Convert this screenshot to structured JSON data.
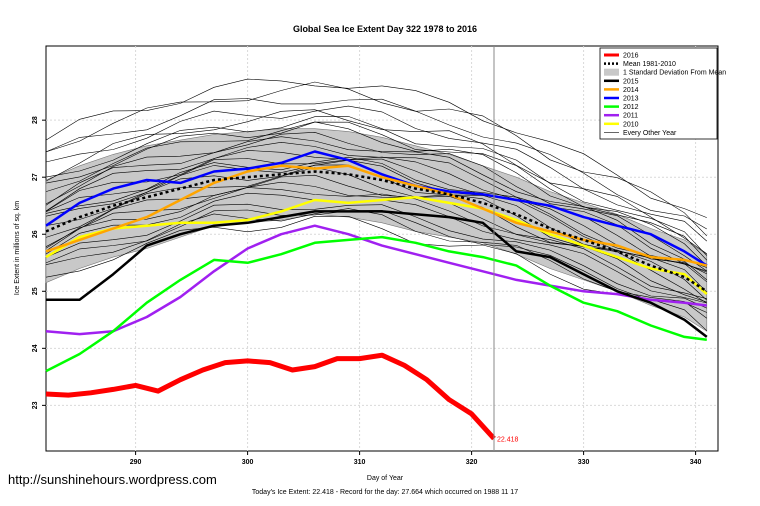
{
  "chart_data": {
    "type": "line",
    "title": "Global Sea Ice Extent Day 322 1978 to 2016",
    "xlabel": "Day of Year",
    "ylabel": "Ice Extent in millions of sq. km",
    "xlim": [
      282,
      342
    ],
    "ylim": [
      22.2,
      29.3
    ],
    "xticks": [
      290,
      300,
      310,
      320,
      330,
      340
    ],
    "yticks": [
      23,
      24,
      25,
      26,
      27,
      28
    ],
    "current_day": 322,
    "end_label": "22.418",
    "x_2016": [
      282,
      284,
      286,
      288,
      290,
      292,
      294,
      296,
      298,
      300,
      302,
      304,
      306,
      308,
      310,
      312,
      314,
      316,
      318,
      320,
      322
    ],
    "x_full": [
      282,
      285,
      288,
      291,
      294,
      297,
      300,
      303,
      306,
      309,
      312,
      315,
      318,
      321,
      324,
      327,
      330,
      333,
      336,
      339,
      341
    ],
    "series": [
      {
        "name": "2016",
        "color": "#ff0000",
        "width": 5,
        "dash": "",
        "values": [
          23.2,
          23.18,
          23.22,
          23.28,
          23.35,
          23.25,
          23.45,
          23.62,
          23.75,
          23.78,
          23.75,
          23.62,
          23.68,
          23.82,
          23.82,
          23.88,
          23.7,
          23.45,
          23.1,
          22.85,
          22.418
        ]
      },
      {
        "name": "Mean 1981-2010",
        "color": "#000000",
        "width": 2.5,
        "dash": "3,3",
        "values": [
          26.05,
          26.3,
          26.5,
          26.65,
          26.8,
          26.95,
          27.0,
          27.05,
          27.1,
          27.05,
          26.95,
          26.8,
          26.7,
          26.55,
          26.35,
          26.1,
          25.9,
          25.7,
          25.45,
          25.25,
          25.0
        ]
      },
      {
        "name": "2015",
        "color": "#000000",
        "width": 2.5,
        "dash": "",
        "values": [
          24.85,
          24.85,
          25.3,
          25.8,
          26.0,
          26.15,
          26.2,
          26.3,
          26.4,
          26.4,
          26.4,
          26.35,
          26.3,
          26.2,
          25.7,
          25.6,
          25.3,
          25.0,
          24.8,
          24.5,
          24.2
        ]
      },
      {
        "name": "2014",
        "color": "#ffa500",
        "width": 2.5,
        "dash": "",
        "values": [
          25.7,
          25.9,
          26.1,
          26.3,
          26.6,
          26.9,
          27.1,
          27.2,
          27.15,
          27.2,
          27.0,
          26.85,
          26.7,
          26.45,
          26.2,
          26.05,
          25.9,
          25.8,
          25.6,
          25.55,
          25.45
        ]
      },
      {
        "name": "2013",
        "color": "#0000ff",
        "width": 2.5,
        "dash": "",
        "values": [
          26.15,
          26.55,
          26.8,
          26.95,
          26.9,
          27.1,
          27.15,
          27.25,
          27.45,
          27.3,
          27.05,
          26.85,
          26.75,
          26.7,
          26.6,
          26.5,
          26.3,
          26.15,
          26.0,
          25.7,
          25.45
        ]
      },
      {
        "name": "2012",
        "color": "#00ff00",
        "width": 2.5,
        "dash": "",
        "values": [
          23.6,
          23.9,
          24.3,
          24.8,
          25.2,
          25.55,
          25.5,
          25.65,
          25.85,
          25.9,
          25.95,
          25.85,
          25.7,
          25.6,
          25.45,
          25.1,
          24.8,
          24.65,
          24.4,
          24.2,
          24.15
        ]
      },
      {
        "name": "2011",
        "color": "#a020f0",
        "width": 2.5,
        "dash": "",
        "values": [
          24.3,
          24.25,
          24.3,
          24.55,
          24.9,
          25.35,
          25.75,
          26.0,
          26.15,
          26.0,
          25.8,
          25.65,
          25.5,
          25.35,
          25.2,
          25.1,
          25.0,
          24.95,
          24.85,
          24.8,
          24.75
        ]
      },
      {
        "name": "2010",
        "color": "#ffff00",
        "width": 2.5,
        "dash": "",
        "values": [
          25.6,
          25.95,
          26.1,
          26.15,
          26.2,
          26.2,
          26.25,
          26.4,
          26.6,
          26.55,
          26.6,
          26.65,
          26.55,
          26.45,
          26.25,
          26.0,
          25.8,
          25.6,
          25.4,
          25.3,
          24.95
        ]
      }
    ],
    "std_band": {
      "upper": [
        26.95,
        27.2,
        27.4,
        27.55,
        27.65,
        27.75,
        27.8,
        27.85,
        27.85,
        27.8,
        27.7,
        27.55,
        27.4,
        27.2,
        27.0,
        26.75,
        26.55,
        26.35,
        26.1,
        25.9,
        25.65
      ],
      "lower": [
        25.15,
        25.4,
        25.6,
        25.75,
        25.95,
        26.15,
        26.2,
        26.25,
        26.35,
        26.3,
        26.2,
        26.05,
        25.95,
        25.85,
        25.65,
        25.4,
        25.2,
        25.0,
        24.75,
        24.55,
        24.3
      ]
    },
    "other_years_offsets": [
      1.6,
      1.3,
      1.1,
      0.9,
      0.75,
      0.6,
      0.45,
      0.35,
      0.25,
      0.15,
      0.05,
      -0.05,
      -0.15,
      -0.25,
      -0.4,
      -0.55,
      -0.7,
      -0.85,
      1.45,
      1.0,
      0.55,
      -0.3,
      -0.65,
      0.2,
      0.8
    ],
    "legend": {
      "position": "top-right",
      "items": [
        "2016",
        "Mean 1981-2010",
        "1 Standard Deviation From Mean",
        "2015",
        "2014",
        "2013",
        "2012",
        "2011",
        "2010",
        "Every Other Year"
      ]
    }
  },
  "watermark": "http://sunshinehours.wordpress.com",
  "footer": "Today's Ice Extent: 22.418  -  Record for the day: 27.664 which occurred on 1988 11 17",
  "colors": {
    "grid": "#d9d9d9",
    "band": "#c8c8c8",
    "vline": "#888888"
  }
}
